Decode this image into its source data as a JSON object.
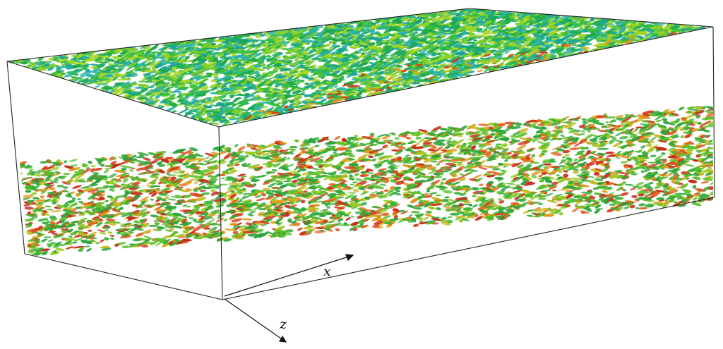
{
  "figure": {
    "axes": {
      "x_label": "x",
      "z_label": "z"
    },
    "palette": {
      "background": "#ffffff",
      "frame": "#222222",
      "upper_layer": [
        "#1aa64a",
        "#22b04a",
        "#3bbf3a",
        "#19a39a",
        "#2bb5b0",
        "#7ccf2a",
        "#a8d622"
      ],
      "lower_layer": [
        "#2aa53a",
        "#5cc02a",
        "#9acb1f",
        "#c9b81e",
        "#e0961b",
        "#e2641a",
        "#d83a17",
        "#c8281a"
      ]
    }
  }
}
